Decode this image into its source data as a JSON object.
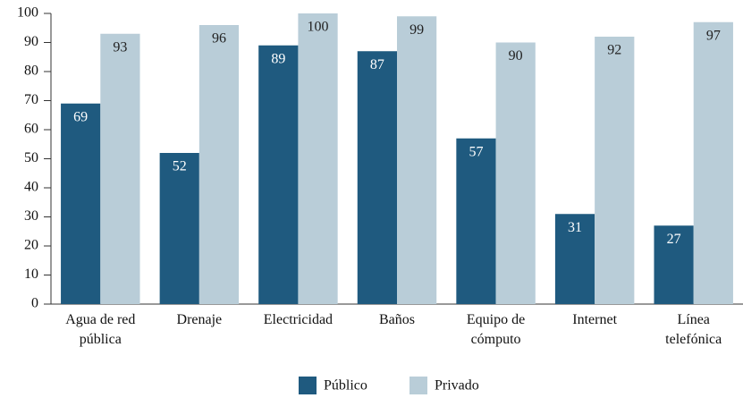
{
  "chart_data": {
    "type": "bar",
    "categories": [
      "Agua de red pública",
      "Drenaje",
      "Electricidad",
      "Baños",
      "Equipo de cómputo",
      "Internet",
      "Línea telefónica"
    ],
    "series": [
      {
        "name": "Público",
        "color": "#1f5a7f",
        "values": [
          69,
          52,
          89,
          87,
          57,
          31,
          27
        ]
      },
      {
        "name": "Privado",
        "color": "#b9cdd8",
        "values": [
          93,
          96,
          100,
          99,
          90,
          92,
          97
        ]
      }
    ],
    "ylim": [
      0,
      100
    ],
    "yticks": [
      0,
      10,
      20,
      30,
      40,
      50,
      60,
      70,
      80,
      90,
      100
    ],
    "grid": false,
    "legend": "bottom"
  }
}
